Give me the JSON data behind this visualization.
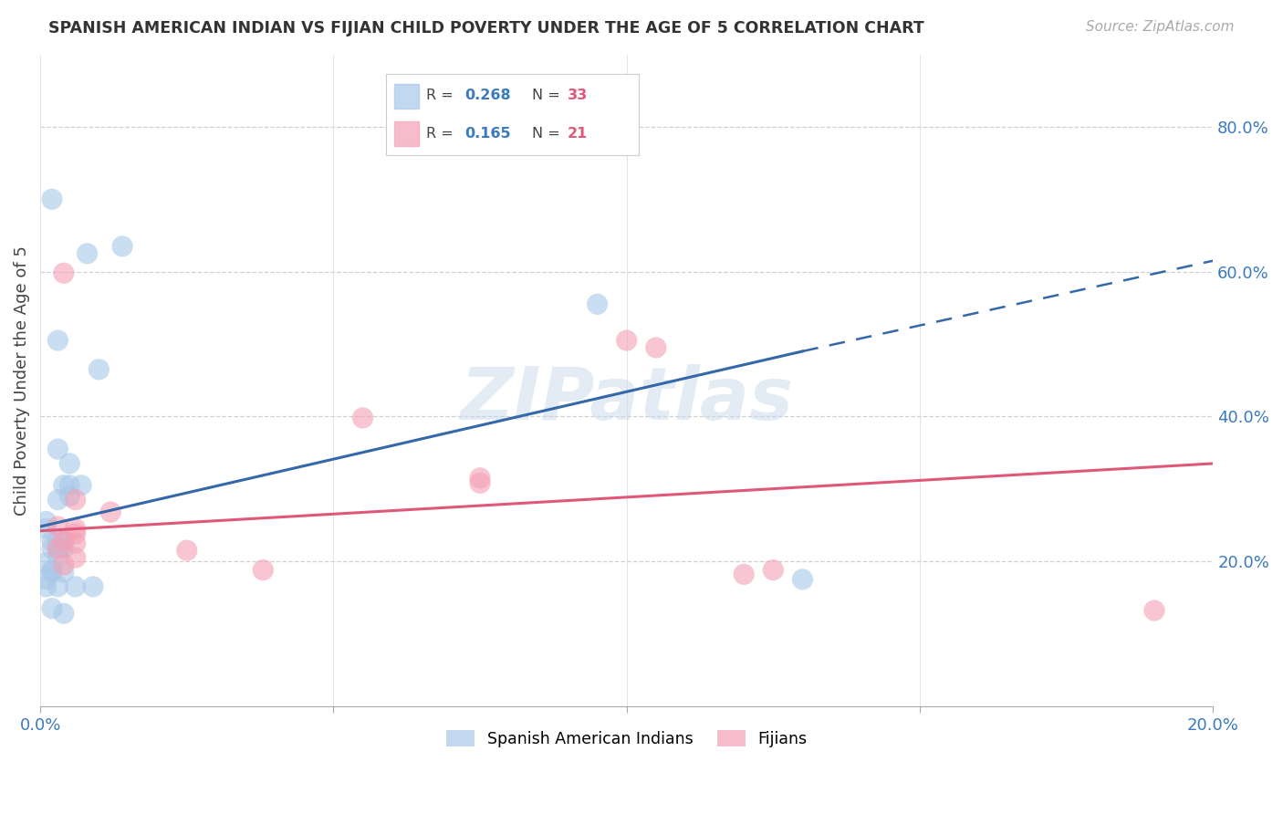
{
  "title": "SPANISH AMERICAN INDIAN VS FIJIAN CHILD POVERTY UNDER THE AGE OF 5 CORRELATION CHART",
  "source": "Source: ZipAtlas.com",
  "ylabel": "Child Poverty Under the Age of 5",
  "xlim": [
    0.0,
    0.2
  ],
  "ylim": [
    0.0,
    0.9
  ],
  "xticks": [
    0.0,
    0.05,
    0.1,
    0.15,
    0.2
  ],
  "xtick_labels": [
    "0.0%",
    "",
    "",
    "",
    "20.0%"
  ],
  "ytick_right": [
    0.2,
    0.4,
    0.6,
    0.8
  ],
  "ytick_right_labels": [
    "20.0%",
    "40.0%",
    "60.0%",
    "80.0%"
  ],
  "legend_label1": "Spanish American Indians",
  "legend_label2": "Fijians",
  "blue_color": "#a8c8e8",
  "pink_color": "#f4a0b5",
  "blue_line_color": "#3468a8",
  "pink_line_color": "#e05878",
  "blue_scatter": [
    [
      0.002,
      0.7
    ],
    [
      0.008,
      0.625
    ],
    [
      0.014,
      0.635
    ],
    [
      0.003,
      0.505
    ],
    [
      0.01,
      0.465
    ],
    [
      0.003,
      0.355
    ],
    [
      0.005,
      0.335
    ],
    [
      0.004,
      0.305
    ],
    [
      0.003,
      0.285
    ],
    [
      0.005,
      0.305
    ],
    [
      0.007,
      0.305
    ],
    [
      0.005,
      0.29
    ],
    [
      0.001,
      0.255
    ],
    [
      0.001,
      0.245
    ],
    [
      0.002,
      0.228
    ],
    [
      0.003,
      0.228
    ],
    [
      0.004,
      0.228
    ],
    [
      0.003,
      0.218
    ],
    [
      0.002,
      0.218
    ],
    [
      0.004,
      0.218
    ],
    [
      0.003,
      0.208
    ],
    [
      0.001,
      0.198
    ],
    [
      0.002,
      0.188
    ],
    [
      0.002,
      0.185
    ],
    [
      0.004,
      0.185
    ],
    [
      0.001,
      0.175
    ],
    [
      0.001,
      0.165
    ],
    [
      0.003,
      0.165
    ],
    [
      0.006,
      0.165
    ],
    [
      0.009,
      0.165
    ],
    [
      0.002,
      0.135
    ],
    [
      0.004,
      0.128
    ],
    [
      0.095,
      0.555
    ],
    [
      0.13,
      0.175
    ]
  ],
  "pink_scatter": [
    [
      0.004,
      0.598
    ],
    [
      0.1,
      0.505
    ],
    [
      0.105,
      0.495
    ],
    [
      0.055,
      0.398
    ],
    [
      0.075,
      0.315
    ],
    [
      0.075,
      0.308
    ],
    [
      0.006,
      0.285
    ],
    [
      0.012,
      0.268
    ],
    [
      0.003,
      0.248
    ],
    [
      0.006,
      0.245
    ],
    [
      0.006,
      0.238
    ],
    [
      0.004,
      0.228
    ],
    [
      0.006,
      0.225
    ],
    [
      0.003,
      0.218
    ],
    [
      0.025,
      0.215
    ],
    [
      0.006,
      0.205
    ],
    [
      0.004,
      0.195
    ],
    [
      0.038,
      0.188
    ],
    [
      0.125,
      0.188
    ],
    [
      0.12,
      0.182
    ],
    [
      0.19,
      0.132
    ]
  ],
  "blue_line_solid": [
    [
      0.0,
      0.248
    ],
    [
      0.13,
      0.49
    ]
  ],
  "blue_line_dashed": [
    [
      0.13,
      0.49
    ],
    [
      0.2,
      0.615
    ]
  ],
  "pink_line": [
    [
      0.0,
      0.242
    ],
    [
      0.2,
      0.335
    ]
  ],
  "watermark": "ZIPatlas",
  "background_color": "#ffffff",
  "grid_color": "#d0d0d0"
}
